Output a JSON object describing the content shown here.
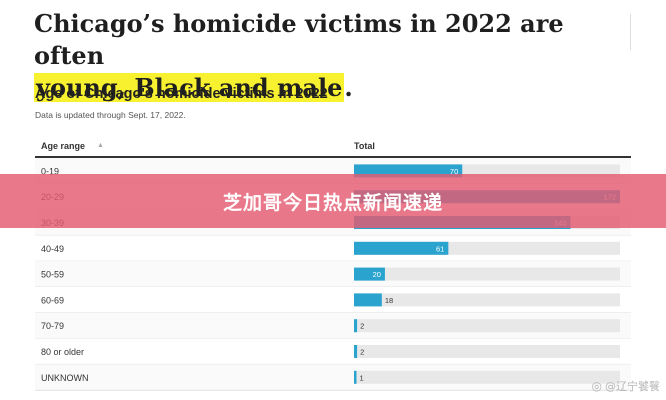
{
  "headline": {
    "line1": "Chicago’s homicide victims in 2022 are often",
    "highlight": "young, Black and male",
    "suffix": "."
  },
  "chart_title": "Age of Chicago's homicide victims in 2022",
  "note": "Data is updated through Sept. 17, 2022.",
  "columns": {
    "age": "Age range",
    "total": "Total"
  },
  "banner": "芝加哥今日热点新闻速递",
  "watermark": {
    "icon": "weibo-icon",
    "text": "@辽宁饕餮"
  },
  "colors": {
    "bar": "#2aa3cf",
    "track": "#e8e8e8",
    "banner": "#e45c70",
    "highlight": "#f7f130"
  },
  "chart_data": {
    "type": "bar",
    "orientation": "horizontal",
    "title": "Age of Chicago's homicide victims in 2022",
    "categories": [
      "0-19",
      "20-29",
      "30-39",
      "40-49",
      "50-59",
      "60-69",
      "70-79",
      "80 or older",
      "UNKNOWN"
    ],
    "values": [
      70,
      172,
      140,
      61,
      20,
      18,
      2,
      2,
      1
    ],
    "xlim": [
      0,
      172
    ],
    "grid": false,
    "legend": "none"
  }
}
